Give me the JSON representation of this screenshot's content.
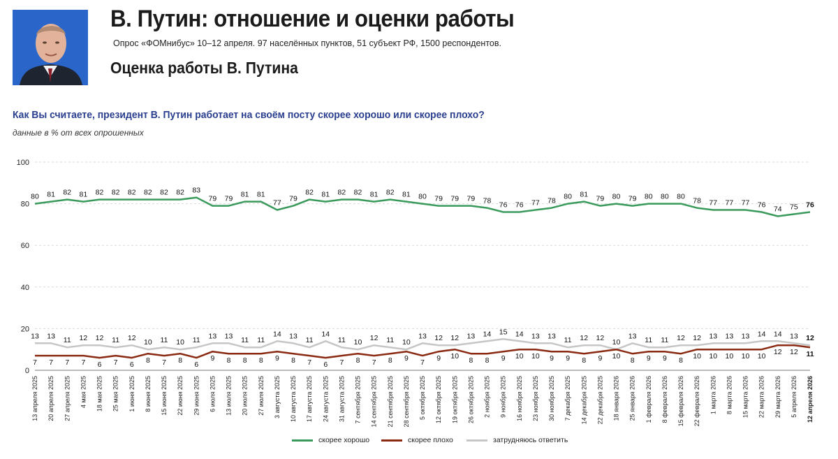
{
  "header": {
    "title": "В. Путин: отношение и оценки работы",
    "subtitle": "Опрос «ФОМнибус» 10–12 апреля. 97 населённых пунктов, 51 субъект РФ, 1500 респондентов.",
    "section_title": "Оценка работы В. Путина",
    "question": "Как Вы считаете, президент В. Путин работает на своём посту скорее хорошо или скорее плохо?",
    "note": "данные в % от всех опрошенных"
  },
  "colors": {
    "good": "#3a9a5b",
    "bad": "#8a2a12",
    "unsure": "#c6c6c6",
    "question": "#2a3f8f"
  },
  "chart_data": {
    "type": "line",
    "ylim": [
      0,
      100
    ],
    "yticks": [
      0,
      20,
      40,
      60,
      80,
      100
    ],
    "grid": true,
    "legend_position": "bottom",
    "categories": [
      "13 апреля 2025",
      "20 апреля 2025",
      "27 апреля 2025",
      "4 мая 2025",
      "18 мая 2025",
      "25 мая 2025",
      "1 июня 2025",
      "8 июня 2025",
      "15 июня 2025",
      "22 июня 2025",
      "29 июня 2025",
      "6 июля 2025",
      "13 июля 2025",
      "20 июля 2025",
      "27 июля 2025",
      "3 августа 2025",
      "10 августа 2025",
      "17 августа 2025",
      "24 августа 2025",
      "31 августа 2025",
      "7 сентября 2025",
      "14 сентября 2025",
      "21 сентября 2025",
      "28 сентября 2025",
      "5 октября 2025",
      "12 октября 2025",
      "19 октября 2025",
      "26 октября 2025",
      "2 ноября 2025",
      "9 ноября 2025",
      "16 ноября 2025",
      "23 ноября 2025",
      "30 ноября 2025",
      "7 декабря 2025",
      "14 декабря 2025",
      "22 декабря 2025",
      "18 января 2026",
      "25 января 2026",
      "1 февраля 2026",
      "8 февраля 2026",
      "15 февраля 2026",
      "22 февраля 2026",
      "1 марта 2026",
      "8 марта 2026",
      "15 марта 2026",
      "22 марта 2026",
      "29 марта 2026",
      "5 апреля 2026",
      "12 апреля 2026"
    ],
    "series": [
      {
        "name": "скорее хорошо",
        "color": "#3a9a5b",
        "values": [
          80,
          81,
          82,
          81,
          82,
          82,
          82,
          82,
          82,
          82,
          83,
          79,
          79,
          81,
          81,
          77,
          79,
          82,
          81,
          82,
          82,
          81,
          82,
          81,
          80,
          79,
          79,
          79,
          78,
          76,
          76,
          77,
          78,
          80,
          81,
          79,
          80,
          79,
          80,
          80,
          80,
          78,
          77,
          77,
          77,
          76,
          74,
          75,
          76
        ]
      },
      {
        "name": "скорее плохо",
        "color": "#8a2a12",
        "values": [
          7,
          7,
          7,
          7,
          6,
          7,
          6,
          8,
          7,
          8,
          6,
          9,
          8,
          8,
          8,
          9,
          8,
          7,
          6,
          7,
          8,
          7,
          8,
          9,
          7,
          9,
          10,
          8,
          8,
          9,
          10,
          10,
          9,
          9,
          8,
          9,
          10,
          8,
          9,
          9,
          8,
          10,
          10,
          10,
          10,
          10,
          12,
          12,
          11
        ]
      },
      {
        "name": "затрудняюсь ответить",
        "color": "#c6c6c6",
        "values": [
          13,
          13,
          11,
          12,
          12,
          11,
          12,
          10,
          11,
          10,
          11,
          13,
          13,
          11,
          11,
          14,
          13,
          11,
          14,
          11,
          10,
          12,
          11,
          10,
          13,
          12,
          12,
          13,
          14,
          15,
          14,
          13,
          13,
          11,
          12,
          12,
          10,
          13,
          11,
          11,
          12,
          12,
          13,
          13,
          13,
          14,
          14,
          13,
          12
        ]
      }
    ]
  }
}
